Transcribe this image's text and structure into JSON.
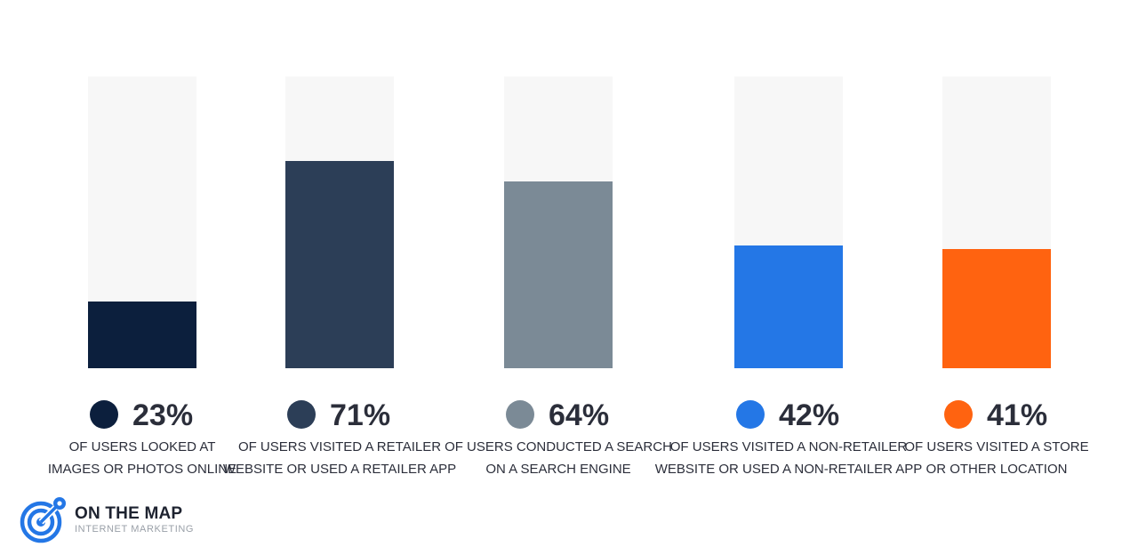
{
  "chart_data": {
    "type": "bar",
    "ylim": [
      0,
      100
    ],
    "categories": [
      {
        "label_lines": [
          "OF USERS LOOKED AT",
          "IMAGES OR PHOTOS ONLINE"
        ],
        "value_label": "23%",
        "value": 23,
        "color": "#0c1f3d"
      },
      {
        "label_lines": [
          "OF USERS VISITED A RETAILER",
          "WEBSITE OR USED A RETAILER APP"
        ],
        "value_label": "71%",
        "value": 71,
        "color": "#2c3e57"
      },
      {
        "label_lines": [
          "OF USERS CONDUCTED A SEARCH",
          "ON A SEARCH ENGINE"
        ],
        "value_label": "64%",
        "value": 64,
        "color": "#7b8a96"
      },
      {
        "label_lines": [
          "OF USERS VISITED A NON-RETAILER",
          "WEBSITE OR USED A NON-RETAILER APP"
        ],
        "value_label": "42%",
        "value": 42,
        "color": "#2477e6"
      },
      {
        "label_lines": [
          "OF USERS VISITED A STORE",
          "OR OTHER LOCATION"
        ],
        "value_label": "41%",
        "value": 41,
        "color": "#ff6310"
      }
    ]
  },
  "logo": {
    "name": "ON THE MAP",
    "subtitle": "INTERNET MARKETING",
    "icon": "target-icon",
    "colors": {
      "primary": "#2477e6",
      "text": "#1e2330",
      "sub": "#9aa0a8"
    }
  }
}
